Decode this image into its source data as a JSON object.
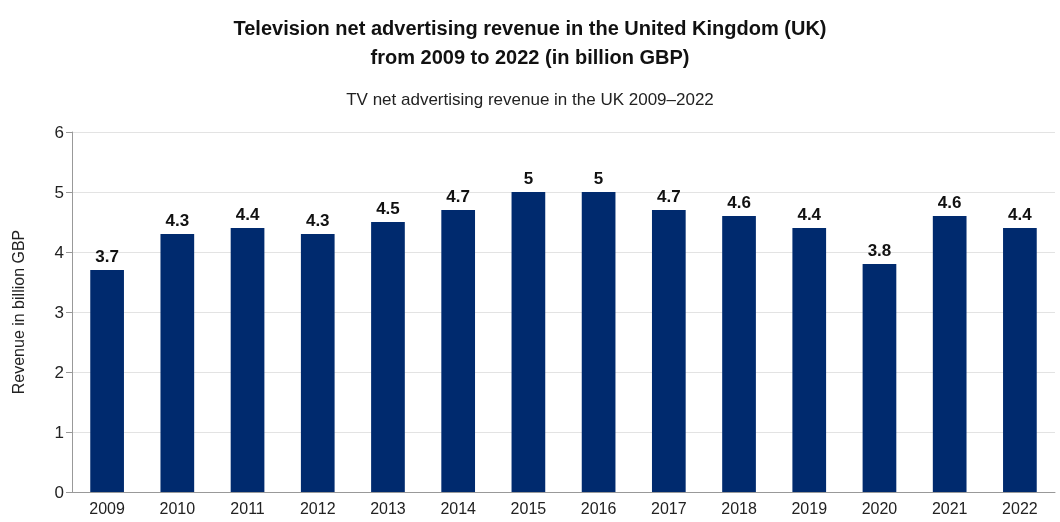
{
  "chart_data": {
    "type": "bar",
    "title": "Television net advertising revenue in the United Kingdom (UK)\nfrom 2009 to 2022 (in billion GBP)",
    "subtitle": "TV net advertising revenue in the UK 2009–2022",
    "ylabel": "Revenue in billion GBP",
    "categories": [
      "2009",
      "2010",
      "2011",
      "2012",
      "2013",
      "2014",
      "2015",
      "2016",
      "2017",
      "2018",
      "2019",
      "2020",
      "2021",
      "2022"
    ],
    "values": [
      3.7,
      4.3,
      4.4,
      4.3,
      4.5,
      4.7,
      5,
      5,
      4.7,
      4.6,
      4.4,
      3.8,
      4.6,
      4.4
    ],
    "color": "#002a6e",
    "ylim": [
      0,
      6
    ],
    "yticks": [
      0,
      1,
      2,
      3,
      4,
      5,
      6
    ],
    "grid": "y",
    "data_labels": true
  }
}
